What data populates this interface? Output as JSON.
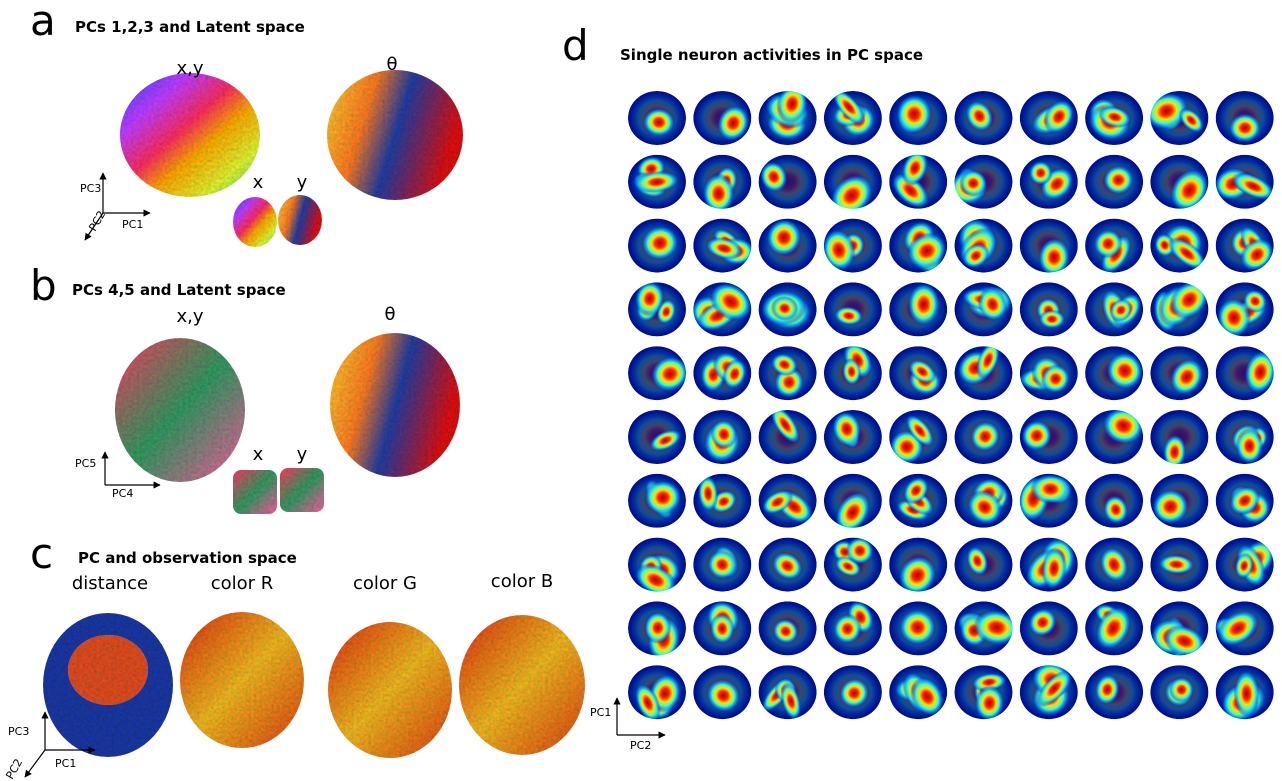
{
  "panels": [
    {
      "letter": "a",
      "title": "PCs 1,2,3 and Latent space",
      "labels": [
        "x,y",
        "θ",
        "x",
        "y"
      ],
      "axes": [
        "PC3",
        "PC2",
        "PC1"
      ]
    },
    {
      "letter": "b",
      "title": "PCs 4,5 and Latent space",
      "labels": [
        "x,y",
        "θ",
        "x",
        "y"
      ],
      "axes": [
        "PC5",
        "PC4"
      ]
    },
    {
      "letter": "c",
      "title": "PC and observation space",
      "labels": [
        "distance",
        "color R",
        "color G",
        "color B"
      ],
      "axes": [
        "PC3",
        "PC2",
        "PC1"
      ]
    },
    {
      "letter": "d",
      "title": "Single neuron activities in PC space",
      "axes": [
        "PC1",
        "PC2"
      ]
    }
  ]
}
